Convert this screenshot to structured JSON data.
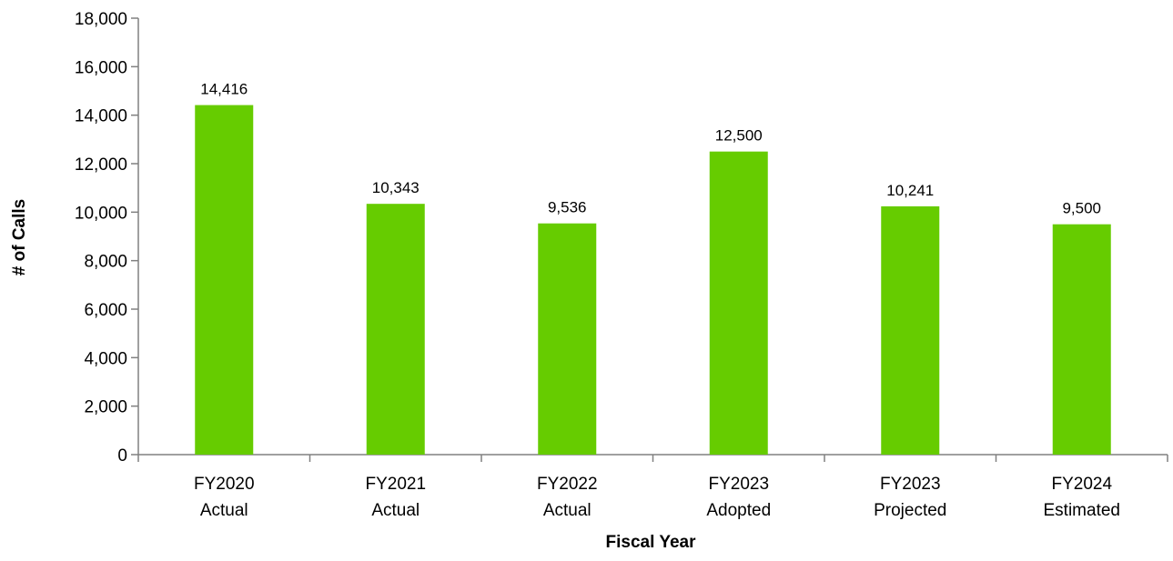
{
  "chart_data": {
    "type": "bar",
    "categories": [
      [
        "FY2020",
        "Actual"
      ],
      [
        "FY2021",
        "Actual"
      ],
      [
        "FY2022",
        "Actual"
      ],
      [
        "FY2023",
        "Adopted"
      ],
      [
        "FY2023",
        "Projected"
      ],
      [
        "FY2024",
        "Estimated"
      ]
    ],
    "values": [
      14416,
      10343,
      9536,
      12500,
      10241,
      9500
    ],
    "data_labels": [
      "14,416",
      "10,343",
      "9,536",
      "12,500",
      "10,241",
      "9,500"
    ],
    "title": "",
    "xlabel": "Fiscal Year",
    "ylabel": "# of Calls",
    "ylim": [
      0,
      18000
    ],
    "yticks": [
      0,
      2000,
      4000,
      6000,
      8000,
      10000,
      12000,
      14000,
      16000,
      18000
    ],
    "ytick_labels": [
      "0",
      "2,000",
      "4,000",
      "6,000",
      "8,000",
      "10,000",
      "12,000",
      "14,000",
      "16,000",
      "18,000"
    ],
    "grid": false,
    "legend": "none",
    "bar_color": "#66cc00",
    "axis_color": "#808080"
  }
}
